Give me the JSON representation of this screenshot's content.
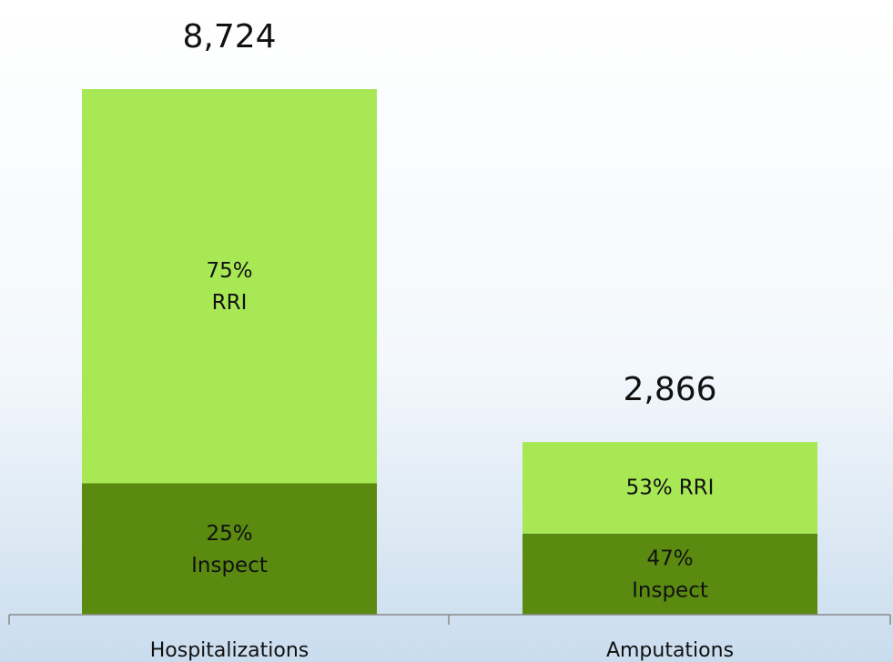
{
  "chart_data": {
    "type": "bar",
    "stacked": true,
    "categories": [
      "Hospitalizations",
      "Amputations"
    ],
    "totals": {
      "values": [
        8724,
        2866
      ],
      "value_labels": [
        "8,724",
        "2,866"
      ]
    },
    "series": [
      {
        "name": "Inspect",
        "color": "#5a8a10",
        "values": [
          25,
          47
        ],
        "value_labels": [
          "25%",
          "47%"
        ]
      },
      {
        "name": "RRI",
        "color": "#a8e855",
        "values": [
          75,
          53
        ],
        "value_labels": [
          "75%",
          "53%"
        ]
      }
    ]
  }
}
